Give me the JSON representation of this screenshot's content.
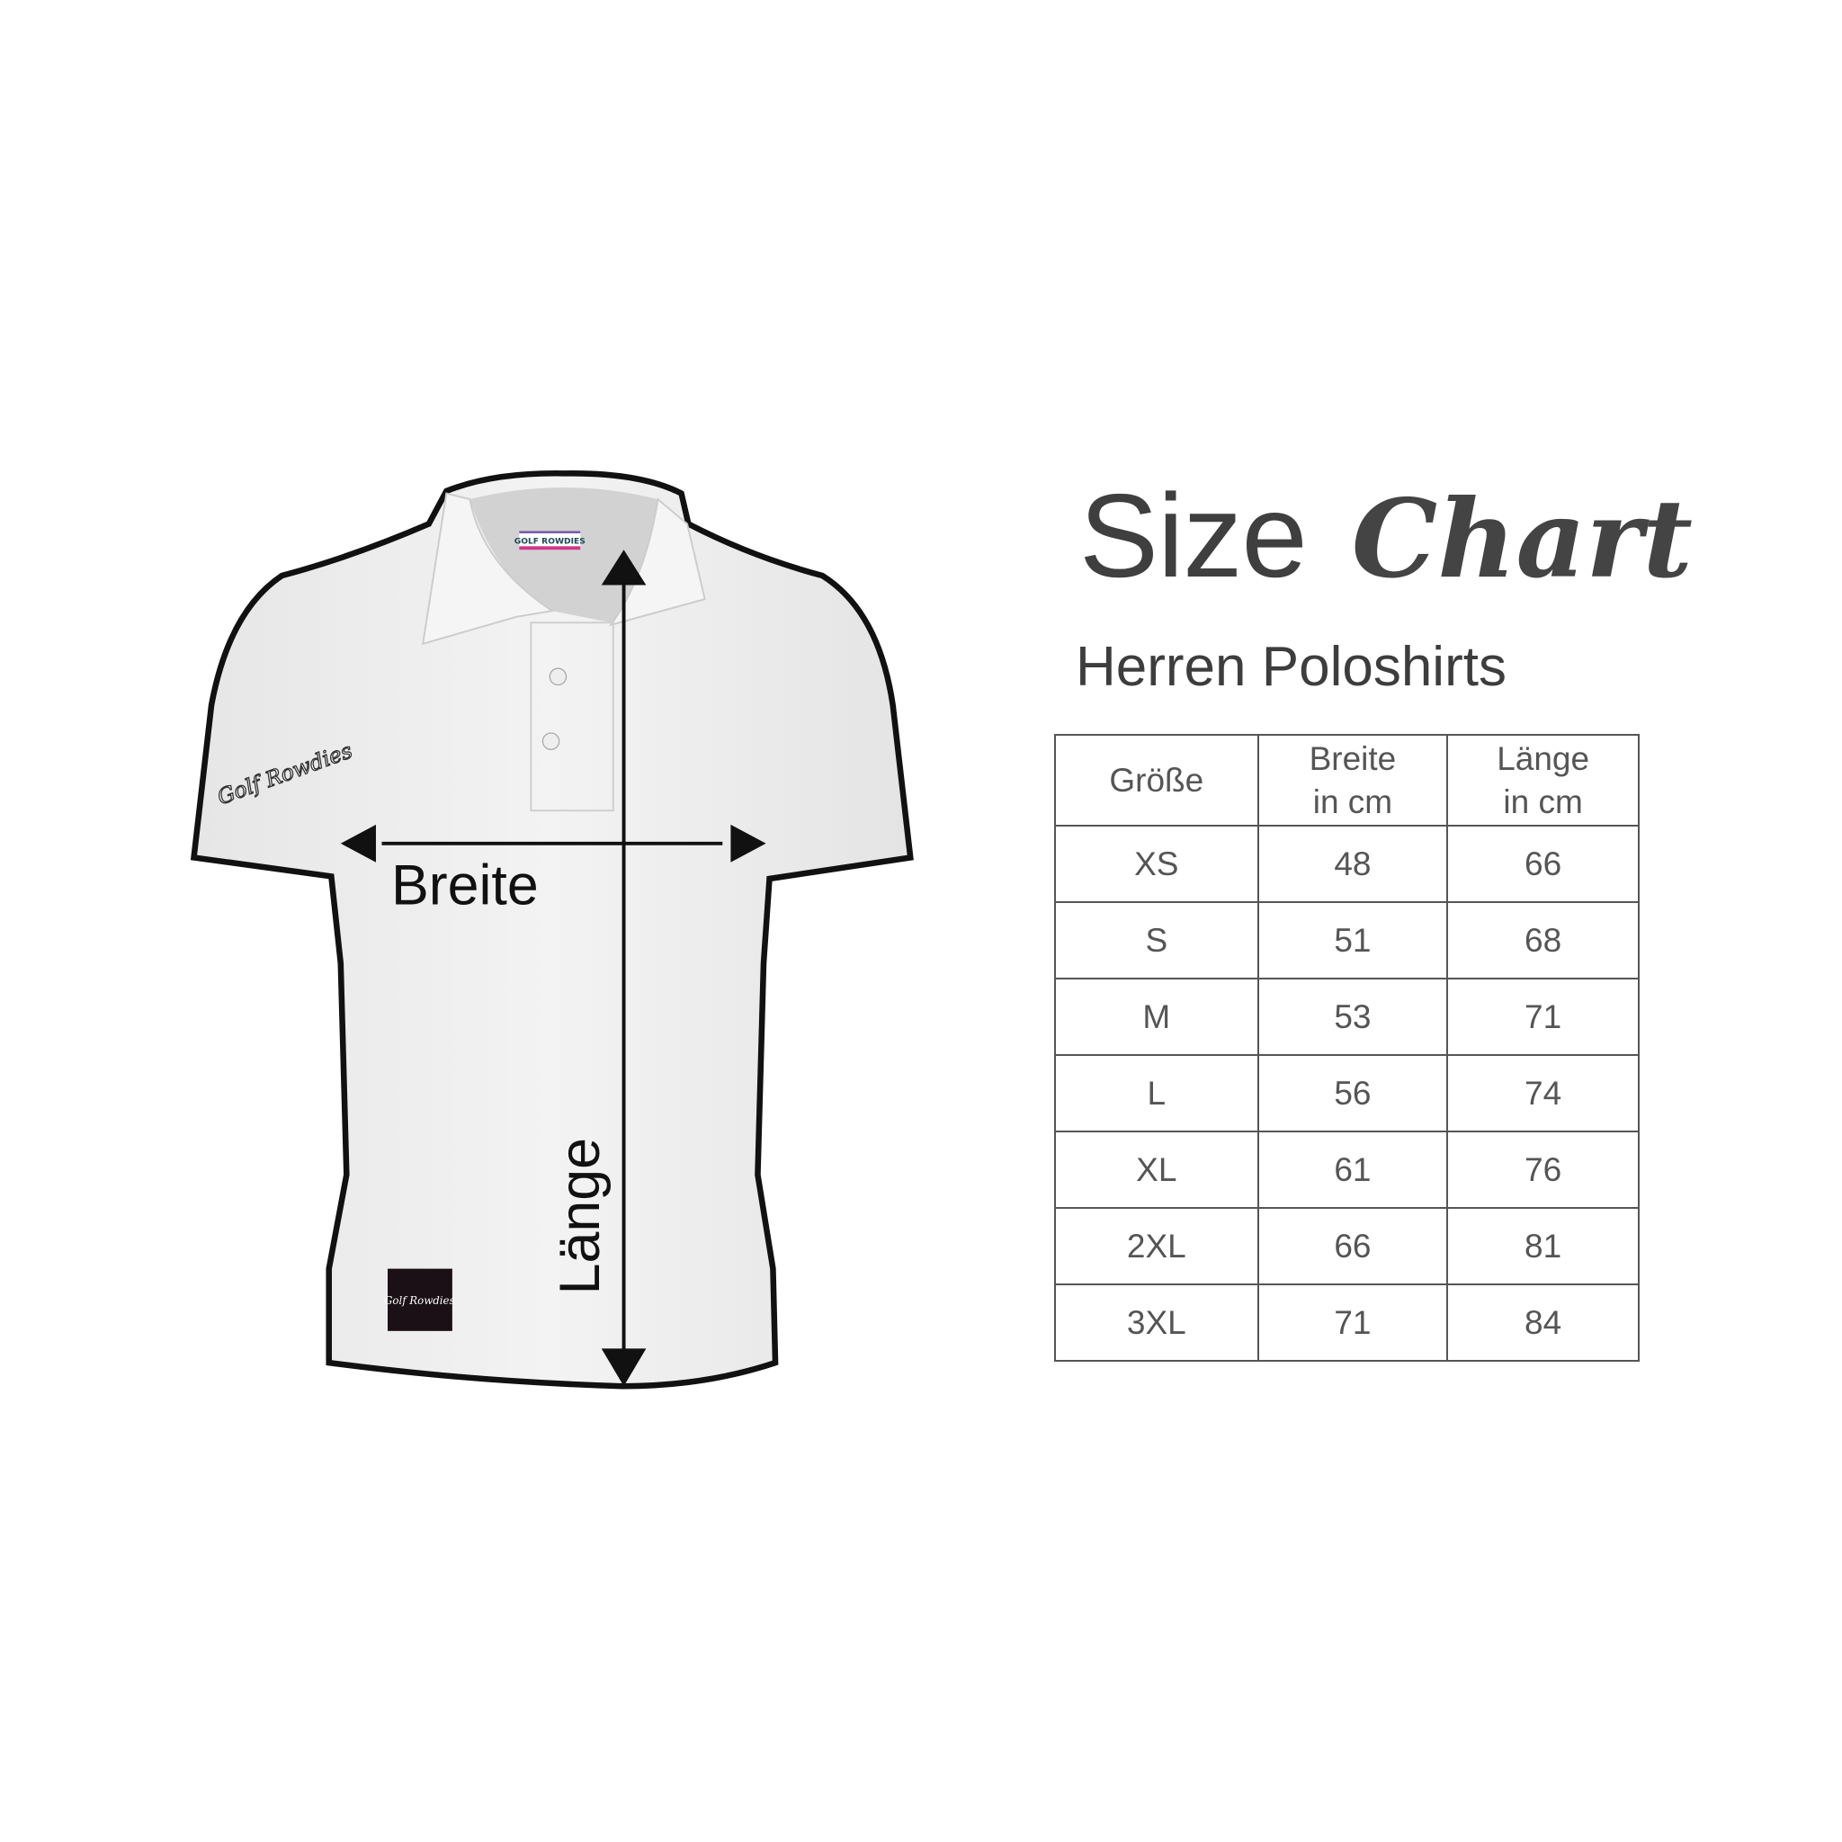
{
  "title": {
    "word1": "Size",
    "word2": "Chart"
  },
  "subtitle": "Herren Poloshirts",
  "diagram": {
    "width_label": "Breite",
    "length_label": "Länge",
    "collar_tag_text": "GOLF ROWDIES",
    "sleeve_logo_text": "Golf Rowdies",
    "hem_patch_text": "Golf Rowdies"
  },
  "table": {
    "headers": [
      {
        "line1": "Größe",
        "line2": ""
      },
      {
        "line1": "Breite",
        "line2": "in cm"
      },
      {
        "line1": "Länge",
        "line2": "in cm"
      }
    ],
    "rows": [
      [
        "XS",
        "48",
        "66"
      ],
      [
        "S",
        "51",
        "68"
      ],
      [
        "M",
        "53",
        "71"
      ],
      [
        "L",
        "56",
        "74"
      ],
      [
        "XL",
        "61",
        "76"
      ],
      [
        "2XL",
        "66",
        "81"
      ],
      [
        "3XL",
        "71",
        "84"
      ]
    ]
  },
  "colors": {
    "text": "#3d3d3d",
    "outline": "#111111",
    "tag_pink": "#d0358a",
    "tag_teal": "#39b3a6"
  }
}
